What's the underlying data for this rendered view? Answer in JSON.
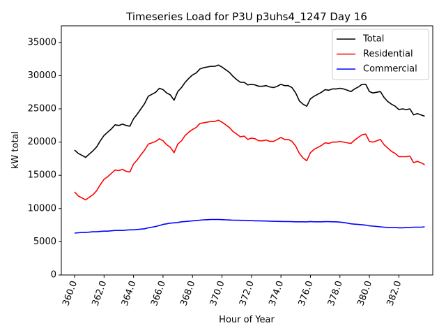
{
  "chart_data": {
    "type": "line",
    "title": "Timeseries Load for P3U p3uhs4_1247  Day 16",
    "xlabel": "Hour of Year",
    "ylabel": "kW total",
    "xlim": [
      359.1,
      384.3
    ],
    "ylim": [
      0,
      37500
    ],
    "xticks": [
      360,
      362,
      364,
      366,
      368,
      370,
      372,
      374,
      376,
      378,
      380,
      382
    ],
    "xtick_labels": [
      "360.0",
      "362.0",
      "364.0",
      "366.0",
      "368.0",
      "370.0",
      "372.0",
      "374.0",
      "376.0",
      "378.0",
      "380.0",
      "382.0"
    ],
    "yticks": [
      0,
      5000,
      10000,
      15000,
      20000,
      25000,
      30000,
      35000
    ],
    "ytick_labels": [
      "0",
      "5000",
      "10000",
      "15000",
      "20000",
      "25000",
      "30000",
      "35000"
    ],
    "legend_position": "top-right",
    "grid": false,
    "x": [
      360.0,
      360.25,
      360.5,
      360.75,
      361.0,
      361.25,
      361.5,
      361.75,
      362.0,
      362.25,
      362.5,
      362.75,
      363.0,
      363.25,
      363.5,
      363.75,
      364.0,
      364.25,
      364.5,
      364.75,
      365.0,
      365.25,
      365.5,
      365.75,
      366.0,
      366.25,
      366.5,
      366.75,
      367.0,
      367.25,
      367.5,
      367.75,
      368.0,
      368.25,
      368.5,
      368.75,
      369.0,
      369.25,
      369.5,
      369.75,
      370.0,
      370.25,
      370.5,
      370.75,
      371.0,
      371.25,
      371.5,
      371.75,
      372.0,
      372.25,
      372.5,
      372.75,
      373.0,
      373.25,
      373.5,
      373.75,
      374.0,
      374.25,
      374.5,
      374.75,
      375.0,
      375.25,
      375.5,
      375.75,
      376.0,
      376.25,
      376.5,
      376.75,
      377.0,
      377.25,
      377.5,
      377.75,
      378.0,
      378.25,
      378.5,
      378.75,
      379.0,
      379.25,
      379.5,
      379.75,
      380.0,
      380.25,
      380.5,
      380.75,
      381.0,
      381.25,
      381.5,
      381.75,
      382.0,
      382.25,
      382.5,
      382.75,
      383.0,
      383.25,
      383.5,
      383.75
    ],
    "series": [
      {
        "name": "Total",
        "color": "#000000",
        "values": [
          18800,
          18300,
          18000,
          17700,
          18200,
          18700,
          19300,
          20200,
          21000,
          21500,
          22000,
          22600,
          22500,
          22700,
          22500,
          22400,
          23500,
          24200,
          25000,
          25800,
          26900,
          27200,
          27500,
          28100,
          27900,
          27400,
          27100,
          26300,
          27600,
          28200,
          29000,
          29600,
          30100,
          30400,
          31000,
          31200,
          31300,
          31400,
          31400,
          31600,
          31300,
          30900,
          30500,
          29900,
          29400,
          29000,
          29000,
          28600,
          28700,
          28600,
          28400,
          28400,
          28500,
          28300,
          28200,
          28400,
          28700,
          28500,
          28500,
          28200,
          27400,
          26200,
          25700,
          25400,
          26500,
          26900,
          27200,
          27500,
          27900,
          27800,
          28000,
          28000,
          28100,
          28000,
          27800,
          27600,
          28000,
          28300,
          28700,
          28700,
          27600,
          27400,
          27500,
          27600,
          26700,
          26100,
          25700,
          25400,
          24900,
          25000,
          24900,
          25000,
          24100,
          24300,
          24100,
          23900
        ]
      },
      {
        "name": "Residential",
        "color": "#ff0000",
        "values": [
          12500,
          11900,
          11600,
          11300,
          11700,
          12100,
          12700,
          13600,
          14400,
          14800,
          15300,
          15800,
          15700,
          15900,
          15600,
          15500,
          16700,
          17300,
          18100,
          18800,
          19700,
          19900,
          20100,
          20500,
          20200,
          19600,
          19200,
          18400,
          19700,
          20200,
          21000,
          21500,
          21900,
          22200,
          22800,
          22900,
          23000,
          23100,
          23100,
          23300,
          23000,
          22600,
          22200,
          21600,
          21200,
          20800,
          20900,
          20400,
          20600,
          20500,
          20200,
          20200,
          20300,
          20100,
          20100,
          20400,
          20700,
          20400,
          20400,
          20100,
          19400,
          18300,
          17600,
          17200,
          18400,
          18900,
          19200,
          19500,
          19900,
          19800,
          20000,
          20000,
          20100,
          20000,
          19900,
          19800,
          20300,
          20700,
          21100,
          21200,
          20100,
          20000,
          20200,
          20400,
          19600,
          19100,
          18600,
          18300,
          17800,
          17800,
          17800,
          17900,
          16900,
          17100,
          16900,
          16600
        ]
      },
      {
        "name": "Commercial",
        "color": "#0000ff",
        "values": [
          6300,
          6350,
          6400,
          6400,
          6450,
          6500,
          6500,
          6550,
          6600,
          6600,
          6650,
          6700,
          6700,
          6700,
          6750,
          6800,
          6800,
          6850,
          6900,
          6950,
          7100,
          7200,
          7300,
          7450,
          7600,
          7700,
          7800,
          7850,
          7900,
          8000,
          8050,
          8100,
          8150,
          8200,
          8250,
          8300,
          8320,
          8350,
          8350,
          8350,
          8330,
          8300,
          8280,
          8250,
          8250,
          8230,
          8220,
          8200,
          8180,
          8150,
          8150,
          8130,
          8120,
          8100,
          8080,
          8070,
          8060,
          8050,
          8050,
          8030,
          8000,
          8000,
          8000,
          7990,
          8050,
          8000,
          8000,
          8000,
          8030,
          8030,
          8000,
          8000,
          7950,
          7900,
          7800,
          7700,
          7650,
          7600,
          7550,
          7500,
          7400,
          7350,
          7300,
          7250,
          7200,
          7150,
          7150,
          7150,
          7100,
          7100,
          7150,
          7150,
          7200,
          7200,
          7200,
          7250
        ]
      }
    ]
  }
}
